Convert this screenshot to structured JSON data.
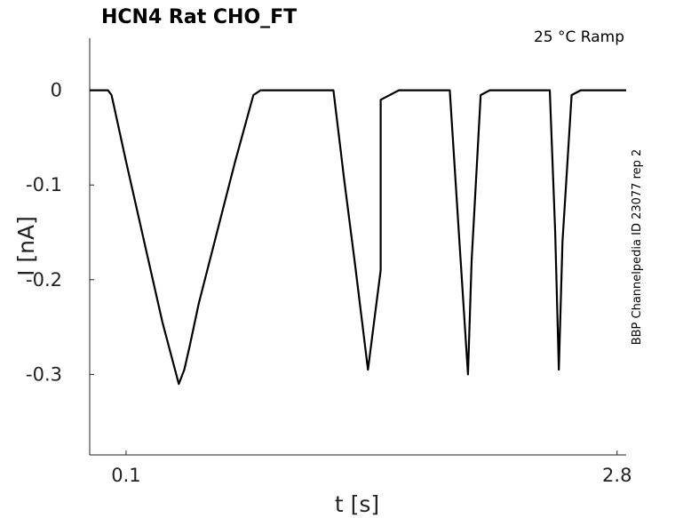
{
  "chart_data": {
    "type": "line",
    "title": "HCN4  Rat  CHO_FT",
    "annotation": "25 °C  Ramp",
    "side_label": "BBP Channelpedia ID 23077 rep 2",
    "xlabel": "t [s]",
    "ylabel": "I [nA]",
    "xlim": [
      -0.1,
      2.85
    ],
    "ylim": [
      -0.385,
      0.055
    ],
    "x_ticks": [
      0.1,
      2.8
    ],
    "x_tick_labels": [
      "0.1",
      "2.8"
    ],
    "y_ticks": [
      0,
      -0.1,
      -0.2,
      -0.3
    ],
    "y_tick_labels": [
      "0",
      "-0.1",
      "-0.2",
      "-0.3"
    ],
    "grid": false,
    "legend": "none",
    "line_color": "#000000",
    "series": [
      {
        "x": [
          -0.1,
          0.0,
          0.02,
          0.1,
          0.2,
          0.3,
          0.39,
          0.42,
          0.45,
          0.5,
          0.6,
          0.7,
          0.8,
          0.84,
          0.9,
          1.0,
          1.1,
          1.24,
          1.3,
          1.36,
          1.43,
          1.5,
          1.5,
          1.6,
          1.7,
          1.88,
          1.93,
          1.98,
          2.0,
          2.05,
          2.1,
          2.2,
          2.3,
          2.43,
          2.46,
          2.48,
          2.5,
          2.55,
          2.6,
          2.7,
          2.8,
          2.85
        ],
        "y": [
          0.0,
          0.0,
          -0.005,
          -0.075,
          -0.16,
          -0.245,
          -0.31,
          -0.295,
          -0.27,
          -0.225,
          -0.15,
          -0.075,
          -0.005,
          0.0,
          0.0,
          0.0,
          0.0,
          0.0,
          -0.095,
          -0.185,
          -0.295,
          -0.19,
          -0.01,
          0.0,
          0.0,
          0.0,
          -0.15,
          -0.3,
          -0.18,
          -0.005,
          0.0,
          0.0,
          0.0,
          0.0,
          -0.15,
          -0.295,
          -0.16,
          -0.005,
          0.0,
          0.0,
          0.0,
          0.0
        ]
      }
    ]
  }
}
